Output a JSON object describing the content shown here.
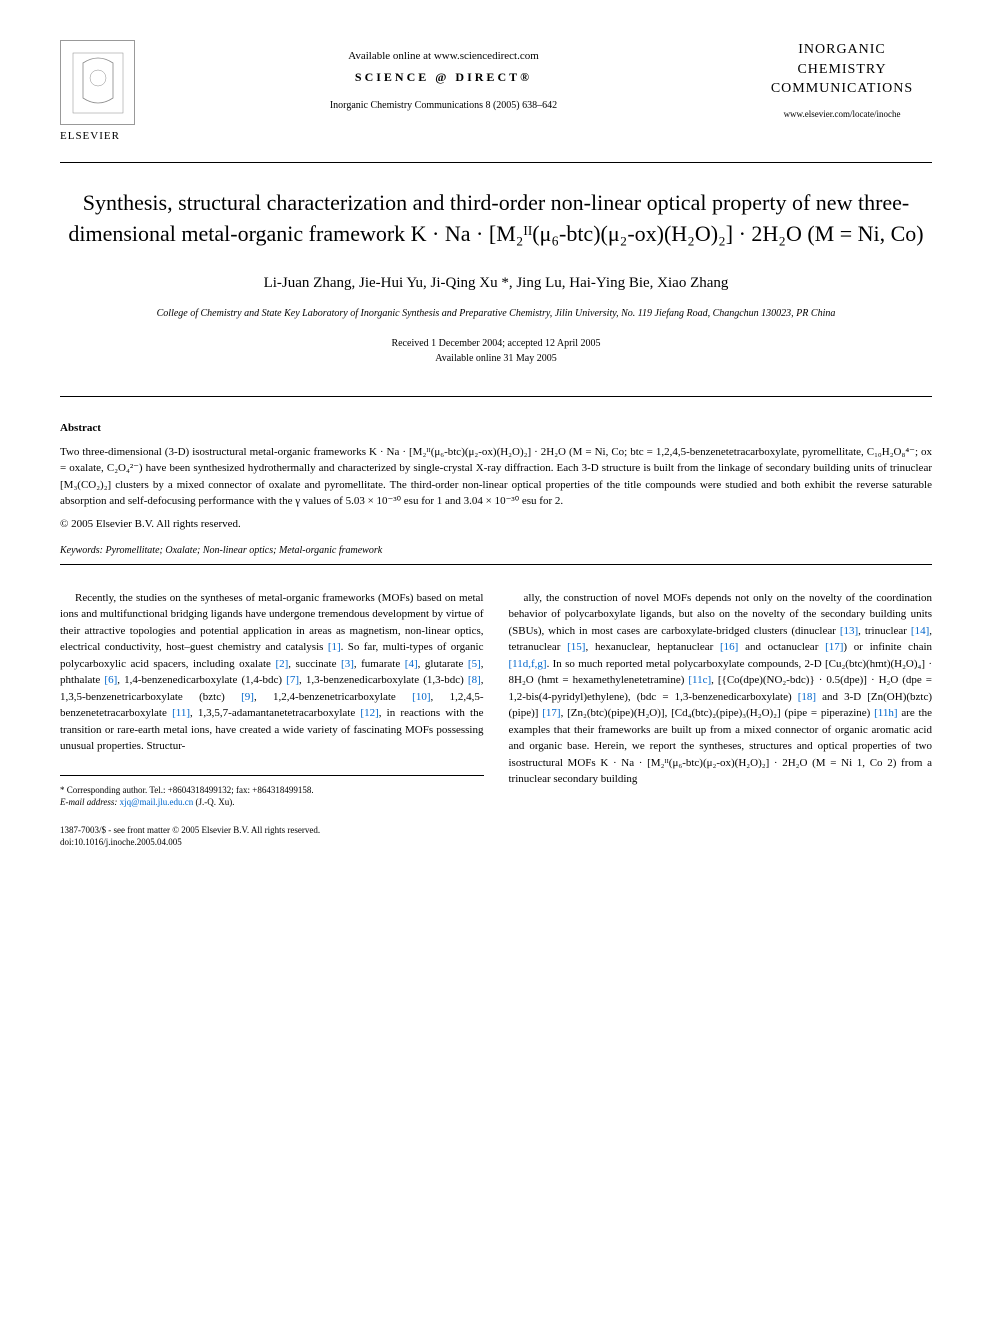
{
  "header": {
    "available_online": "Available online at www.sciencedirect.com",
    "sciencedirect": "SCIENCE @ DIRECT®",
    "journal_ref": "Inorganic Chemistry Communications 8 (2005) 638–642",
    "elsevier_label": "ELSEVIER",
    "journal_name_line1": "INORGANIC",
    "journal_name_line2": "CHEMISTRY",
    "journal_name_line3": "COMMUNICATIONS",
    "journal_url": "www.elsevier.com/locate/inoche"
  },
  "title": "Synthesis, structural characterization and third-order non-linear optical property of new three-dimensional metal-organic framework K · Na · [M₂ᴵᴵ(μ₆-btc)(μ₂-ox)(H₂O)₂] · 2H₂O (M = Ni, Co)",
  "authors": "Li-Juan Zhang, Jie-Hui Yu, Ji-Qing Xu *, Jing Lu, Hai-Ying Bie, Xiao Zhang",
  "affiliation": "College of Chemistry and State Key Laboratory of Inorganic Synthesis and Preparative Chemistry, Jilin University, No. 119 Jiefang Road, Changchun 130023, PR China",
  "dates": {
    "received": "Received 1 December 2004; accepted 12 April 2005",
    "available": "Available online 31 May 2005"
  },
  "abstract": {
    "heading": "Abstract",
    "text": "Two three-dimensional (3-D) isostructural metal-organic frameworks K · Na · [M₂ᴵᴵ(μ₆-btc)(μ₂-ox)(H₂O)₂] · 2H₂O (M = Ni, Co; btc = 1,2,4,5-benzenetetracarboxylate, pyromellitate, C₁₀H₂O₈⁴⁻; ox = oxalate, C₂O₄²⁻) have been synthesized hydrothermally and characterized by single-crystal X-ray diffraction. Each 3-D structure is built from the linkage of secondary building units of trinuclear [M₃(CO₂)₂] clusters by a mixed connector of oxalate and pyromellitate. The third-order non-linear optical properties of the title compounds were studied and both exhibit the reverse saturable absorption and self-defocusing performance with the γ values of 5.03 × 10⁻³⁰ esu for 1 and 3.04 × 10⁻³⁰ esu for 2.",
    "copyright": "© 2005 Elsevier B.V. All rights reserved."
  },
  "keywords": {
    "label": "Keywords:",
    "text": "Pyromellitate; Oxalate; Non-linear optics; Metal-organic framework"
  },
  "body": {
    "col1": "Recently, the studies on the syntheses of metal-organic frameworks (MOFs) based on metal ions and multifunctional bridging ligands have undergone tremendous development by virtue of their attractive topologies and potential application in areas as magnetism, non-linear optics, electrical conductivity, host–guest chemistry and catalysis [1]. So far, multi-types of organic polycarboxylic acid spacers, including oxalate [2], succinate [3], fumarate [4], glutarate [5], phthalate [6], 1,4-benzenedicarboxylate (1,4-bdc) [7], 1,3-benzenedicarboxylate (1,3-bdc) [8], 1,3,5-benzenetricarboxylate (bztc) [9], 1,2,4-benzenetricarboxylate [10], 1,2,4,5-benzenetetracarboxylate [11], 1,3,5,7-adamantanetetracarboxylate [12], in reactions with the transition or rare-earth metal ions, have created a wide variety of fascinating MOFs possessing unusual properties. Structur-",
    "col2": "ally, the construction of novel MOFs depends not only on the novelty of the coordination behavior of polycarboxylate ligands, but also on the novelty of the secondary building units (SBUs), which in most cases are carboxylate-bridged clusters (dinuclear [13], trinuclear [14], tetranuclear [15], hexanuclear, heptanuclear [16] and octanuclear [17]) or infinite chain [11d,f,g]. In so much reported metal polycarboxylate compounds, 2-D [Cu₂(btc)(hmt)(H₂O)₄] · 8H₂O (hmt = hexamethylenetetramine) [11c], [{Co(dpe)(NO₂-bdc)} · 0.5(dpe)] · H₂O (dpe = 1,2-bis(4-pyridyl)ethylene), (bdc = 1,3-benzenedicarboxylate) [18] and 3-D [Zn(OH)(bztc)(pipe)] [17], [Zn₂(btc)(pipe)(H₂O)], [Cd₄(btc)₂(pipe)₃(H₂O)₂] (pipe = piperazine) [11h] are the examples that their frameworks are built up from a mixed connector of organic aromatic acid and organic base. Herein, we report the syntheses, structures and optical properties of two isostructural MOFs K · Na · [M₂ᴵᴵ(μ₆-btc)(μ₂-ox)(H₂O)₂] · 2H₂O (M = Ni 1, Co 2) from a trinuclear secondary building"
  },
  "footnote": {
    "corresponding": "* Corresponding author. Tel.: +8604318499132; fax: +864318499158.",
    "email_label": "E-mail address:",
    "email": "xjq@mail.jlu.edu.cn",
    "email_suffix": "(J.-Q. Xu)."
  },
  "bottom": {
    "issn": "1387-7003/$ - see front matter © 2005 Elsevier B.V. All rights reserved.",
    "doi": "doi:10.1016/j.inoche.2005.04.005"
  },
  "colors": {
    "text": "#000000",
    "link": "#0066cc",
    "background": "#ffffff"
  }
}
